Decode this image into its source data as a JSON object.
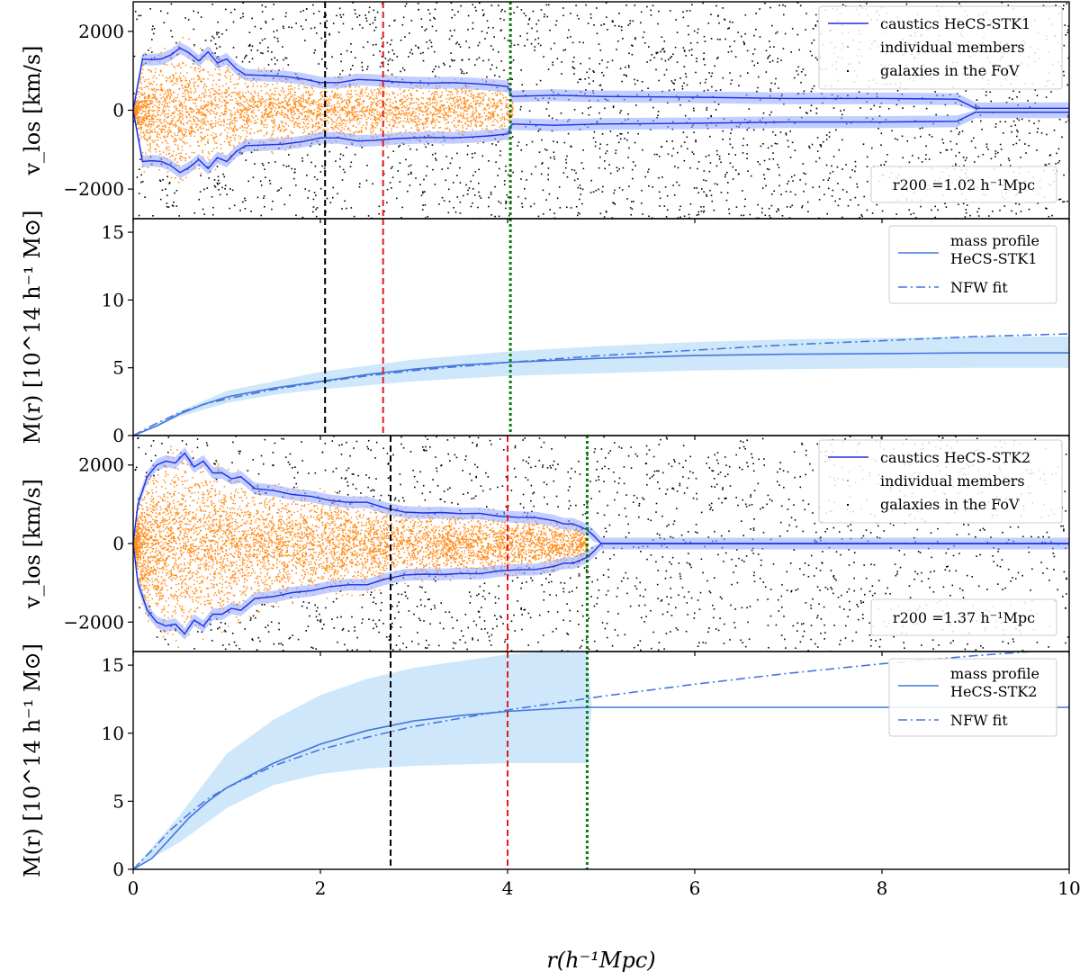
{
  "chart_data": [
    {
      "type": "scatter",
      "panel": "caustics-1",
      "ylabel": "v_los [km/s]",
      "xlim": [
        0,
        10
      ],
      "ylim": [
        -2750,
        2750
      ],
      "yticks": [
        -2000,
        0,
        2000
      ],
      "ytick_labels": [
        "−2000",
        "0",
        "2000"
      ],
      "legend": [
        "caustics HeCS-STK1",
        "individual members",
        "galaxies in the FoV"
      ],
      "legend_position": "top-right",
      "annotation": "r200 =1.02 h⁻¹Mpc",
      "caustic": {
        "r": [
          0,
          0.1,
          0.2,
          0.3,
          0.4,
          0.5,
          0.6,
          0.7,
          0.8,
          0.9,
          1.0,
          1.1,
          1.2,
          1.4,
          1.6,
          1.8,
          2.0,
          2.2,
          2.4,
          2.6,
          2.8,
          3.0,
          3.2,
          3.4,
          3.6,
          3.8,
          4.0,
          4.05,
          4.5,
          5.0,
          6.0,
          7.0,
          8.0,
          8.8,
          9.0,
          10.0
        ],
        "v": [
          0,
          1300,
          1280,
          1300,
          1400,
          1580,
          1450,
          1250,
          1480,
          1200,
          1300,
          1050,
          900,
          880,
          860,
          800,
          700,
          700,
          780,
          760,
          720,
          700,
          690,
          700,
          680,
          650,
          600,
          350,
          380,
          350,
          330,
          300,
          300,
          280,
          50,
          50
        ]
      },
      "members_extent_r": 4.05,
      "fov_count": 2600,
      "member_count": 3500
    },
    {
      "type": "line",
      "panel": "mass-1",
      "ylabel": "M(r) [10^14 h⁻¹ M⊙]",
      "xlim": [
        0,
        10
      ],
      "ylim": [
        0,
        16
      ],
      "yticks": [
        0,
        5,
        10,
        15
      ],
      "legend": [
        "mass profile HeCS-STK1",
        "NFW fit"
      ],
      "legend_position": "top-right",
      "series": [
        {
          "name": "mass profile HeCS-STK1",
          "x": [
            0,
            0.25,
            0.5,
            0.75,
            1.0,
            1.5,
            2.0,
            2.5,
            3.0,
            3.5,
            4.0,
            5.0,
            6.0,
            7.0,
            8.0,
            9.0,
            10.0
          ],
          "y": [
            0,
            0.7,
            1.6,
            2.3,
            2.85,
            3.5,
            4.0,
            4.5,
            4.9,
            5.2,
            5.4,
            5.7,
            5.9,
            6.0,
            6.05,
            6.1,
            6.1
          ]
        },
        {
          "name": "NFW fit",
          "x": [
            0,
            0.25,
            0.5,
            0.75,
            1.0,
            1.5,
            2.0,
            2.5,
            3.0,
            3.5,
            4.0,
            5.0,
            6.0,
            7.0,
            8.0,
            9.0,
            10.0
          ],
          "y": [
            0,
            0.9,
            1.7,
            2.3,
            2.7,
            3.4,
            3.95,
            4.4,
            4.8,
            5.1,
            5.4,
            5.9,
            6.3,
            6.7,
            7.0,
            7.3,
            7.5
          ]
        }
      ],
      "band": {
        "x": [
          0,
          0.5,
          1.0,
          1.5,
          2.0,
          3.0,
          4.0,
          5.0,
          6.0,
          7.0,
          8.0,
          9.0,
          10.0
        ],
        "lo": [
          0,
          1.4,
          2.4,
          3.0,
          3.4,
          4.0,
          4.4,
          4.6,
          4.8,
          4.9,
          4.95,
          5.0,
          5.0
        ],
        "hi": [
          0,
          1.8,
          3.3,
          4.0,
          4.7,
          5.6,
          6.2,
          6.6,
          6.9,
          7.1,
          7.2,
          7.3,
          7.3
        ]
      }
    },
    {
      "type": "scatter",
      "panel": "caustics-2",
      "ylabel": "v_los [km/s]",
      "xlim": [
        0,
        10
      ],
      "ylim": [
        -2750,
        2750
      ],
      "yticks": [
        -2000,
        0,
        2000
      ],
      "ytick_labels": [
        "−2000",
        "0",
        "2000"
      ],
      "legend": [
        "caustics HeCS-STK2",
        "individual members",
        "galaxies in the FoV"
      ],
      "legend_position": "top-right",
      "annotation": "r200 =1.37 h⁻¹Mpc",
      "caustic": {
        "r": [
          0,
          0.05,
          0.15,
          0.25,
          0.35,
          0.45,
          0.55,
          0.65,
          0.75,
          0.85,
          0.95,
          1.05,
          1.15,
          1.3,
          1.5,
          1.7,
          1.9,
          2.1,
          2.3,
          2.5,
          2.7,
          2.9,
          3.1,
          3.3,
          3.5,
          3.7,
          3.9,
          4.1,
          4.3,
          4.5,
          4.6,
          4.7,
          4.8,
          4.85,
          4.92,
          5.0,
          10.0
        ],
        "v": [
          0,
          1000,
          1700,
          2000,
          2100,
          2050,
          2300,
          1950,
          2100,
          1800,
          1800,
          1650,
          1700,
          1400,
          1350,
          1250,
          1200,
          1100,
          1050,
          1050,
          900,
          800,
          780,
          790,
          760,
          770,
          700,
          670,
          660,
          580,
          500,
          500,
          400,
          350,
          200,
          0,
          0
        ]
      },
      "members_extent_r": 4.85,
      "fov_count": 2100,
      "member_count": 6000
    },
    {
      "type": "line",
      "panel": "mass-2",
      "ylabel": "M(r) [10^14 h⁻¹ M⊙]",
      "xlabel": "r(h⁻¹Mpc)",
      "xlim": [
        0,
        10
      ],
      "ylim": [
        0,
        16
      ],
      "yticks": [
        0,
        5,
        10,
        15
      ],
      "xticks": [
        0,
        2,
        4,
        6,
        8,
        10
      ],
      "legend": [
        "mass profile HeCS-STK2",
        "NFW fit"
      ],
      "legend_position": "top-right",
      "series": [
        {
          "name": "mass profile HeCS-STK2",
          "x": [
            0,
            0.2,
            0.4,
            0.6,
            0.8,
            1.0,
            1.5,
            2.0,
            2.5,
            3.0,
            3.5,
            4.0,
            4.5,
            4.85,
            5.0,
            6.0,
            7.0,
            8.0,
            9.0,
            10.0
          ],
          "y": [
            0,
            0.8,
            2.3,
            3.8,
            5.0,
            6.0,
            7.8,
            9.2,
            10.2,
            10.9,
            11.3,
            11.6,
            11.8,
            11.9,
            11.9,
            11.9,
            11.9,
            11.9,
            11.9,
            11.9
          ]
        },
        {
          "name": "NFW fit",
          "x": [
            0,
            0.2,
            0.4,
            0.6,
            0.8,
            1.0,
            1.5,
            2.0,
            2.5,
            3.0,
            3.5,
            4.0,
            5.0,
            6.0,
            7.0,
            8.0,
            9.0,
            10.0
          ],
          "y": [
            0,
            1.4,
            2.9,
            4.1,
            5.2,
            6.0,
            7.6,
            8.8,
            9.7,
            10.5,
            11.1,
            11.7,
            12.7,
            13.6,
            14.4,
            15.1,
            15.7,
            16.2
          ]
        }
      ],
      "band": {
        "x": [
          0,
          0.5,
          1.0,
          1.5,
          2.0,
          2.5,
          3.0,
          3.5,
          4.0,
          4.5,
          4.85,
          4.9
        ],
        "lo": [
          0,
          2.0,
          4.5,
          6.2,
          7.0,
          7.4,
          7.6,
          7.7,
          7.8,
          7.8,
          7.8,
          12.0
        ],
        "hi": [
          0,
          4.0,
          8.5,
          11.0,
          12.8,
          14.0,
          14.8,
          15.3,
          15.8,
          16.0,
          16.0,
          12.0
        ]
      }
    }
  ],
  "vlines": [
    {
      "panels": [
        0,
        1
      ],
      "x": 2.05,
      "color": "#000000",
      "style": "dashed"
    },
    {
      "panels": [
        0,
        1
      ],
      "x": 2.67,
      "color": "#e41a1c",
      "style": "dashed"
    },
    {
      "panels": [
        0,
        1
      ],
      "x": 4.03,
      "color": "#0a7a0a",
      "style": "dotted"
    },
    {
      "panels": [
        2,
        3
      ],
      "x": 2.75,
      "color": "#000000",
      "style": "dashed"
    },
    {
      "panels": [
        2,
        3
      ],
      "x": 4.0,
      "color": "#e41a1c",
      "style": "dashed"
    },
    {
      "panels": [
        2,
        3
      ],
      "x": 4.85,
      "color": "#0a7a0a",
      "style": "dotted"
    }
  ],
  "colors": {
    "caustic": "#1f2fe6",
    "caustic_band": "#8ea6ff",
    "members": "#ff8c1a",
    "fov": "#000000",
    "mass": "#4477dd",
    "mass_band": "#cfe7fb"
  }
}
